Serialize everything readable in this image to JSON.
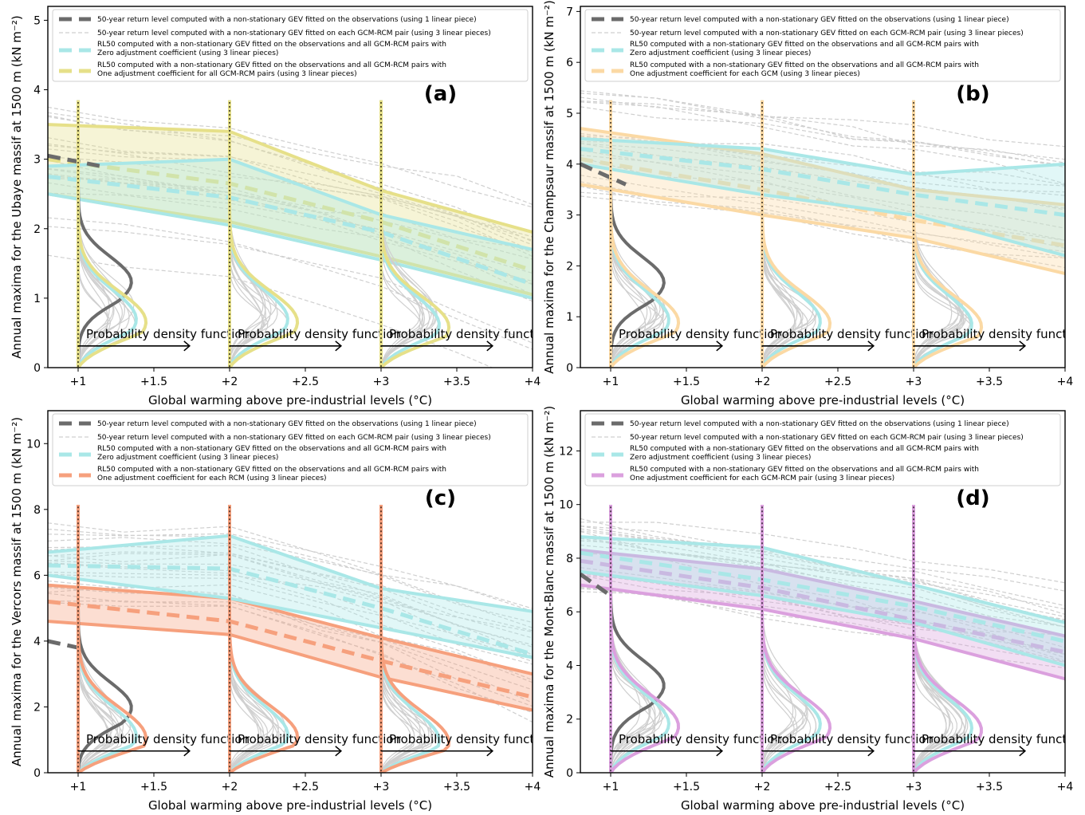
{
  "figure": {
    "x_axis_label": "Global warming above pre-industrial levels (°C)",
    "x_tick_labels": [
      "+1",
      "+1.5",
      "+2",
      "+2.5",
      "+3",
      "+3.5",
      "+4"
    ],
    "pdf_label": "Probability density function",
    "colors": {
      "observation": "#6b6b6b",
      "gcm_rcm": "#cfcfcf",
      "zero_adjustment": "#a9e7e7",
      "a": "#e6e089",
      "b": "#fbd9a4",
      "c": "#f6a07d",
      "d": "#dba0de"
    }
  },
  "legend_common": {
    "observation": "50-year return level computed with a non-stationary GEV fitted on the observations (using 1 linear piece)",
    "gcm_rcm": "50-year return level computed with a non-stationary GEV fitted on each GCM-RCM pair (using 3 linear pieces)",
    "zero_line1": "RL50 computed with a non-stationary GEV fitted on the observations and all GCM-RCM pairs with",
    "zero_line2": "Zero adjustment coefficient (using 3 linear pieces)",
    "adj_line1": "RL50 computed with a non-stationary GEV fitted on the observations and all GCM-RCM pairs with"
  },
  "panels": [
    {
      "letter": "(a)",
      "ylabel": "Annual maxima for the Ubaye massif at 1500 m (kN m⁻²)",
      "adj_line2": "One adjustment coefficient for all GCM-RCM pairs (using 3 linear pieces)"
    },
    {
      "letter": "(b)",
      "ylabel": "Annual maxima for the Champsaur massif at 1500 m (kN m⁻²)",
      "adj_line2": "One adjustment coefficient for each GCM (using 3 linear pieces)"
    },
    {
      "letter": "(c)",
      "ylabel": "Annual maxima for the Vercors massif at 1500 m (kN m⁻²)",
      "adj_line2": "One adjustment coefficient for each RCM (using 3 linear pieces)"
    },
    {
      "letter": "(d)",
      "ylabel": "Annual maxima for the Mont-Blanc massif at 1500 m (kN m⁻²)",
      "adj_line2": "One adjustment coefficient for each GCM-RCM pair (using 3 linear pieces)"
    }
  ],
  "chart_data": [
    {
      "type": "line",
      "panel": "(a)",
      "xlim": [
        0.8,
        4.0
      ],
      "ylim": [
        0,
        5.2
      ],
      "x_ticks": [
        1,
        1.5,
        2,
        2.5,
        3,
        3.5,
        4
      ],
      "y_ticks": [
        0,
        1,
        2,
        3,
        4,
        5
      ],
      "observation_rl50": {
        "x": [
          0.8,
          1.15
        ],
        "y": [
          3.05,
          2.9
        ]
      },
      "zero_adjustment": {
        "x": [
          0.8,
          2,
          3,
          4
        ],
        "mean": [
          2.75,
          2.45,
          1.95,
          1.2
        ],
        "upper": [
          2.9,
          3.0,
          2.2,
          1.7
        ],
        "lower": [
          2.5,
          2.05,
          1.55,
          1.0
        ]
      },
      "adjusted": {
        "x": [
          0.8,
          2,
          3,
          4
        ],
        "mean": [
          3.0,
          2.65,
          2.1,
          1.4
        ],
        "upper": [
          3.5,
          3.4,
          2.55,
          1.95
        ],
        "lower": [
          2.5,
          2.1,
          1.6,
          1.05
        ]
      },
      "gcm_rcm_count": 20
    },
    {
      "type": "line",
      "panel": "(b)",
      "xlim": [
        0.8,
        4.0
      ],
      "ylim": [
        0,
        7.1
      ],
      "x_ticks": [
        1,
        1.5,
        2,
        2.5,
        3,
        3.5,
        4
      ],
      "y_ticks": [
        0,
        1,
        2,
        3,
        4,
        5,
        6,
        7
      ],
      "observation_rl50": {
        "x": [
          0.8,
          1.1
        ],
        "y": [
          4.0,
          3.6
        ]
      },
      "zero_adjustment": {
        "x": [
          0.8,
          2,
          3,
          4
        ],
        "mean": [
          4.3,
          3.9,
          3.4,
          3.0
        ],
        "upper": [
          4.5,
          4.3,
          3.8,
          4.0
        ],
        "lower": [
          4.0,
          3.4,
          3.0,
          2.2
        ]
      },
      "adjusted": {
        "x": [
          0.8,
          2,
          3,
          4
        ],
        "mean": [
          4.1,
          3.5,
          2.9,
          2.4
        ],
        "upper": [
          4.7,
          4.2,
          3.5,
          3.2
        ],
        "lower": [
          3.6,
          3.0,
          2.55,
          1.85
        ]
      },
      "gcm_rcm_count": 20
    },
    {
      "type": "line",
      "panel": "(c)",
      "xlim": [
        0.8,
        4.0
      ],
      "ylim": [
        0,
        11
      ],
      "x_ticks": [
        1,
        1.5,
        2,
        2.5,
        3,
        3.5,
        4
      ],
      "y_ticks": [
        0,
        2,
        4,
        6,
        8,
        10
      ],
      "observation_rl50": {
        "x": [
          0.8,
          1.0
        ],
        "y": [
          4.0,
          3.8
        ]
      },
      "zero_adjustment": {
        "x": [
          0.8,
          2,
          3,
          4
        ],
        "mean": [
          6.3,
          6.2,
          5.0,
          3.6
        ],
        "upper": [
          6.7,
          7.2,
          5.6,
          4.9
        ],
        "lower": [
          6.0,
          5.3,
          4.4,
          3.5
        ]
      },
      "adjusted": {
        "x": [
          0.8,
          2,
          3,
          4
        ],
        "mean": [
          5.2,
          4.6,
          3.4,
          2.3
        ],
        "upper": [
          5.7,
          5.3,
          4.1,
          3.0
        ],
        "lower": [
          4.6,
          4.2,
          2.9,
          1.9
        ]
      },
      "gcm_rcm_count": 20
    },
    {
      "type": "line",
      "panel": "(d)",
      "xlim": [
        0.8,
        4.0
      ],
      "ylim": [
        0,
        13.5
      ],
      "x_ticks": [
        1,
        1.5,
        2,
        2.5,
        3,
        3.5,
        4
      ],
      "y_ticks": [
        0,
        2,
        4,
        6,
        8,
        10,
        12
      ],
      "observation_rl50": {
        "x": [
          0.8,
          1.0
        ],
        "y": [
          7.4,
          6.6
        ]
      },
      "zero_adjustment": {
        "x": [
          0.8,
          2,
          3,
          4
        ],
        "mean": [
          8.2,
          7.2,
          6.2,
          4.9
        ],
        "upper": [
          8.8,
          8.4,
          7.0,
          5.6
        ],
        "lower": [
          7.5,
          6.6,
          5.6,
          4.0
        ]
      },
      "adjusted": {
        "x": [
          0.8,
          2,
          3,
          4
        ],
        "mean": [
          7.9,
          6.9,
          5.7,
          4.5
        ],
        "upper": [
          8.3,
          7.6,
          6.4,
          5.1
        ],
        "lower": [
          7.0,
          6.1,
          5.0,
          3.5
        ]
      },
      "gcm_rcm_count": 20
    }
  ]
}
